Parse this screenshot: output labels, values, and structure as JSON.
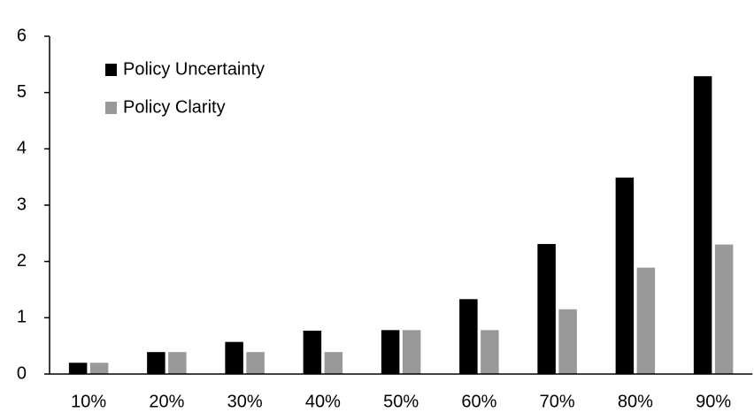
{
  "chart_data": {
    "type": "bar",
    "categories": [
      "10%",
      "20%",
      "30%",
      "40%",
      "50%",
      "60%",
      "70%",
      "80%",
      "90%"
    ],
    "series": [
      {
        "name": "Policy Uncertainty",
        "color": "#000000",
        "values": [
          0.2,
          0.39,
          0.57,
          0.77,
          0.78,
          1.33,
          2.31,
          3.49,
          5.29
        ]
      },
      {
        "name": "Policy Clarity",
        "color": "#999999",
        "values": [
          0.2,
          0.39,
          0.39,
          0.39,
          0.78,
          0.78,
          1.15,
          1.89,
          2.3
        ]
      }
    ],
    "ylim": [
      0,
      6
    ],
    "yticks": [
      0,
      1,
      2,
      3,
      4,
      5,
      6
    ],
    "grid": false,
    "legend": "upper-left"
  }
}
